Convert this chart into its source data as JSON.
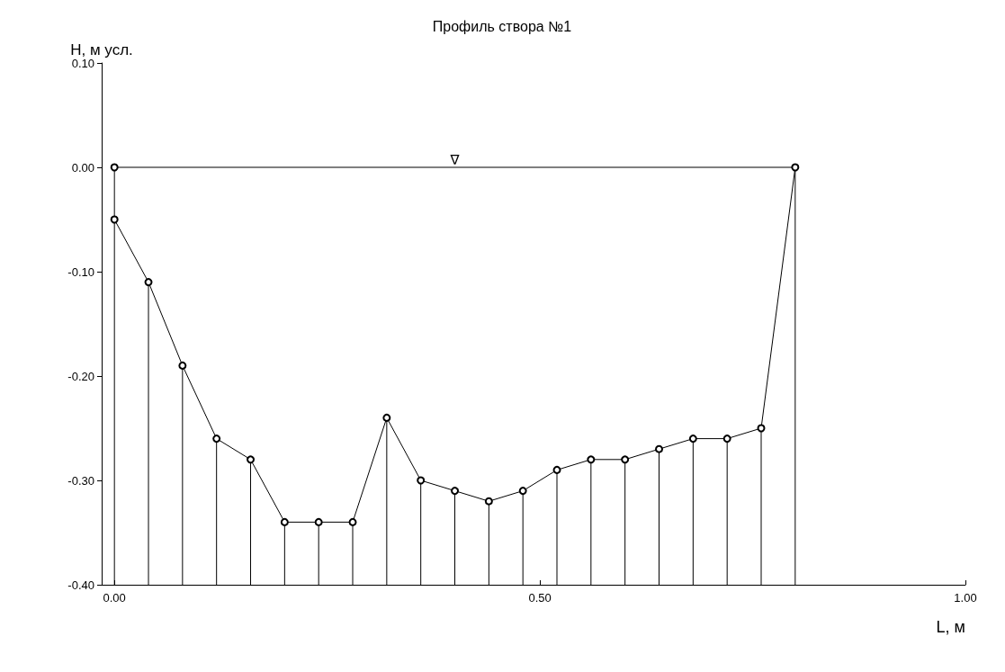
{
  "chart_data": {
    "type": "line",
    "title": "Профиль створа №1",
    "xlabel": "L, м",
    "ylabel": "H, м усл.",
    "xlim": [
      -0.015,
      1.0
    ],
    "xticks": [
      {
        "value": 0,
        "label": "0.00"
      },
      {
        "value": 0.5,
        "label": "0.50"
      },
      {
        "value": 1,
        "label": "1.00"
      }
    ],
    "ylim": [
      -0.4,
      0.1
    ],
    "yticks": [
      {
        "value": -0.4,
        "label": "-0.40"
      },
      {
        "value": -0.3,
        "label": "-0.30"
      },
      {
        "value": -0.2,
        "label": "-0.20"
      },
      {
        "value": -0.1,
        "label": "-0.10"
      },
      {
        "value": 0,
        "label": "0.00"
      },
      {
        "value": 0.1,
        "label": "0.10"
      }
    ],
    "marker": "circle",
    "line_style": "solid",
    "series": [
      {
        "color": "#000000",
        "x": [
          0,
          0,
          0.04,
          0.08,
          0.12,
          0.16,
          0.2,
          0.24,
          0.28,
          0.32,
          0.36,
          0.4,
          0.44,
          0.48,
          0.52,
          0.56,
          0.6,
          0.64,
          0.68,
          0.72,
          0.76,
          0.8
        ],
        "values": [
          0,
          -0.05,
          -0.11,
          -0.19,
          -0.26,
          -0.28,
          -0.34,
          -0.34,
          -0.34,
          -0.24,
          -0.3,
          -0.31,
          -0.32,
          -0.31,
          -0.29,
          -0.28,
          -0.28,
          -0.27,
          -0.26,
          -0.26,
          -0.25,
          0
        ],
        "errors": [
          null,
          [
            -0.4,
            -0.05
          ],
          [
            -0.4,
            -0.11
          ],
          [
            -0.4,
            -0.19
          ],
          [
            -0.4,
            -0.26
          ],
          [
            -0.4,
            -0.28
          ],
          [
            -0.4,
            -0.34
          ],
          [
            -0.4,
            -0.34
          ],
          [
            -0.4,
            -0.34
          ],
          [
            -0.4,
            -0.24
          ],
          [
            -0.4,
            -0.3
          ],
          [
            -0.4,
            -0.31
          ],
          [
            -0.4,
            -0.32
          ],
          [
            -0.4,
            -0.31
          ],
          [
            -0.4,
            -0.29
          ],
          [
            -0.4,
            -0.28
          ],
          [
            -0.4,
            -0.28
          ],
          [
            -0.4,
            -0.27
          ],
          [
            -0.4,
            -0.26
          ],
          [
            -0.4,
            -0.26
          ],
          [
            -0.4,
            -0.25
          ],
          [
            -0.4,
            0
          ]
        ]
      },
      {
        "color": "#000000",
        "x": [
          0,
          0.8
        ],
        "values": [
          0,
          0
        ],
        "marker": "none"
      }
    ],
    "annotations": [
      {
        "text": "∇",
        "x": 0.4,
        "y": 0
      }
    ]
  }
}
